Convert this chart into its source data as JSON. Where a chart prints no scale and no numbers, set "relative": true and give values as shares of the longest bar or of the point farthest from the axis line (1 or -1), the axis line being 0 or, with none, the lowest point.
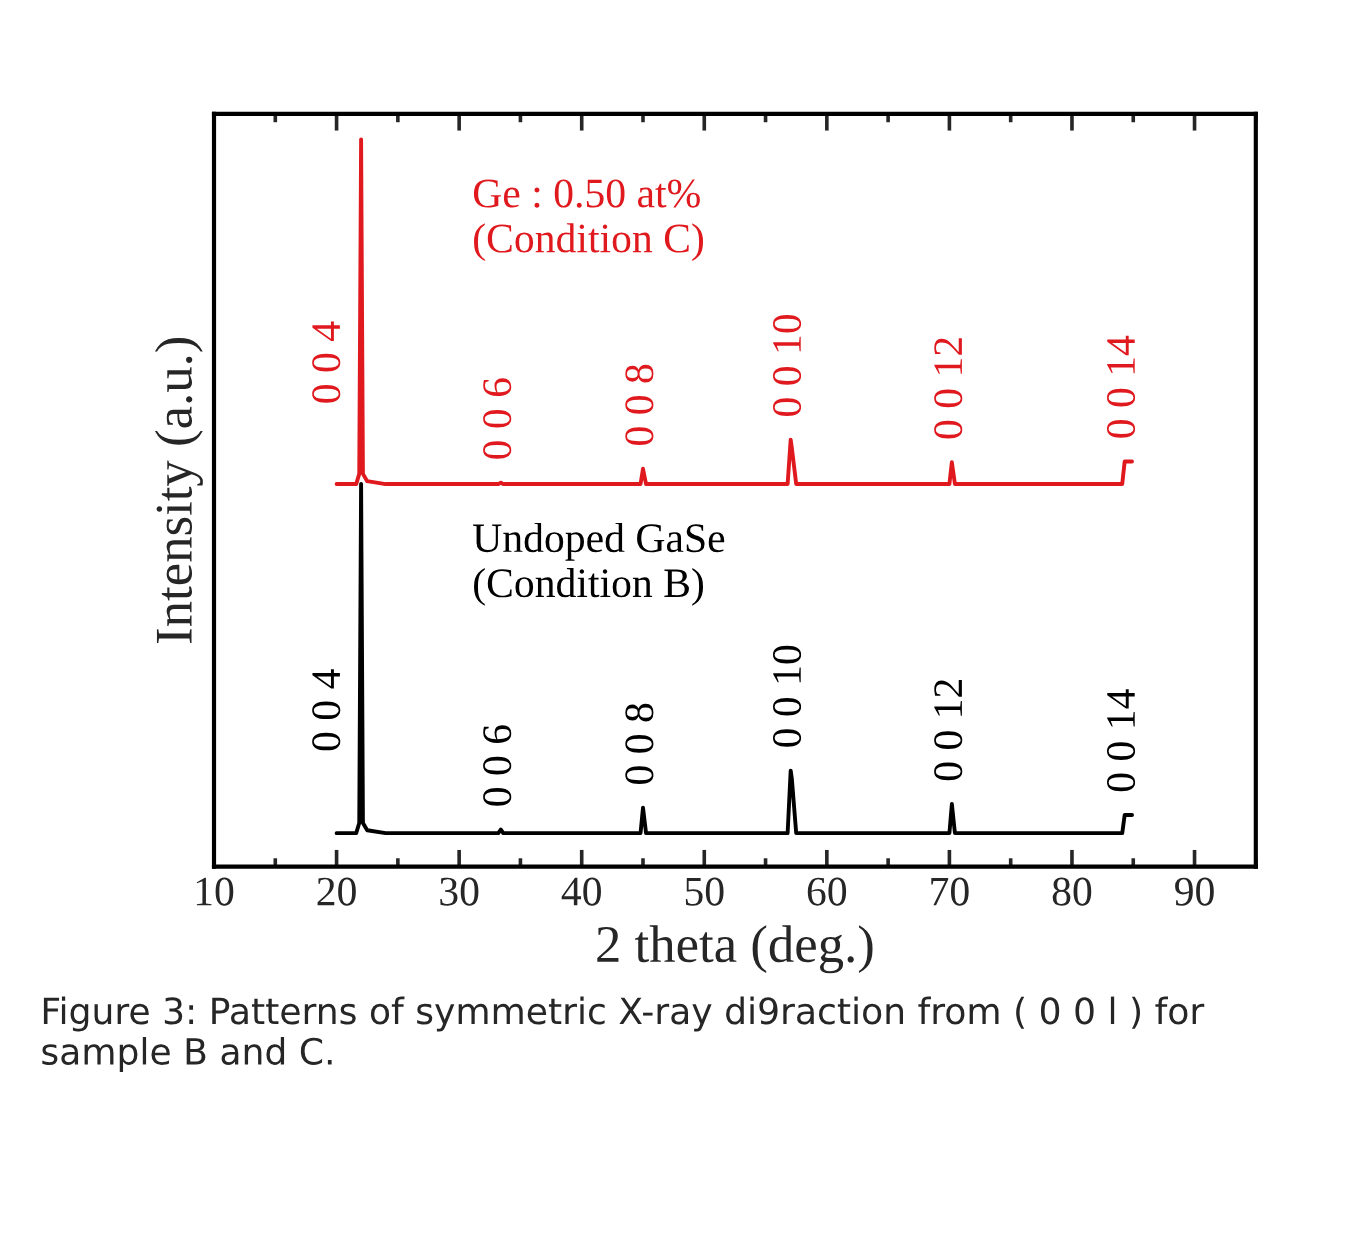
{
  "chart_data": {
    "type": "line",
    "relative": true,
    "xlabel": "2 theta (deg.)",
    "ylabel": "Intensity (a.u.)",
    "xlim": [
      10,
      95
    ],
    "xticks": [
      10,
      20,
      30,
      40,
      50,
      60,
      70,
      80,
      90
    ],
    "marker": "none",
    "line_style": "solid",
    "x": [
      20,
      21.6,
      21.85,
      22.0,
      22.15,
      22.5,
      24,
      33.2,
      33.4,
      33.6,
      44.8,
      45.0,
      45.25,
      56.8,
      57.05,
      57.15,
      57.5,
      70.0,
      70.2,
      70.45,
      84.1,
      84.3,
      84.9
    ],
    "series": [
      {
        "name": "Undoped GaSe\n(Condition B)",
        "color": "#000000",
        "values": [
          0.046,
          0.046,
          0.06,
          0.526,
          0.06,
          0.05,
          0.046,
          0.046,
          0.051,
          0.046,
          0.046,
          0.081,
          0.046,
          0.046,
          0.132,
          0.12,
          0.046,
          0.046,
          0.086,
          0.046,
          0.046,
          0.071,
          0.071
        ]
      },
      {
        "name": "Ge : 0.50 at%\n(Condition C)",
        "color": "#e0191e",
        "values": [
          0.526,
          0.526,
          0.54,
          1.0,
          0.54,
          0.53,
          0.526,
          0.526,
          0.528,
          0.526,
          0.526,
          0.547,
          0.526,
          0.526,
          0.587,
          0.575,
          0.526,
          0.526,
          0.556,
          0.526,
          0.526,
          0.557,
          0.557
        ]
      }
    ],
    "annotations": [
      {
        "text": "0 0 4",
        "x": 21.9,
        "y": 0.693
      },
      {
        "text": "0 0 6",
        "x": 33.4,
        "y": 0.528
      },
      {
        "text": "0 0 8",
        "x": 45.0,
        "y": 0.547
      },
      {
        "text": "0 0 10",
        "x": 57.05,
        "y": 0.587
      },
      {
        "text": "0 0 12",
        "x": 70.2,
        "y": 0.556
      },
      {
        "text": "0 0 14",
        "x": 84.3,
        "y": 0.557
      },
      {
        "text": "0 0 4",
        "x": 21.9,
        "y": 0.215
      },
      {
        "text": "0 0 6",
        "x": 33.4,
        "y": 0.051
      },
      {
        "text": "0 0 8",
        "x": 45.0,
        "y": 0.081
      },
      {
        "text": "0 0 10",
        "x": 57.05,
        "y": 0.132
      },
      {
        "text": "0 0 12",
        "x": 70.2,
        "y": 0.086
      },
      {
        "text": "0 0 14",
        "x": 84.3,
        "y": 0.071
      },
      "Figure 3: Patterns of symmetric X-ray di9raction from ( 0 0 l ) for sample B and C."
    ]
  }
}
